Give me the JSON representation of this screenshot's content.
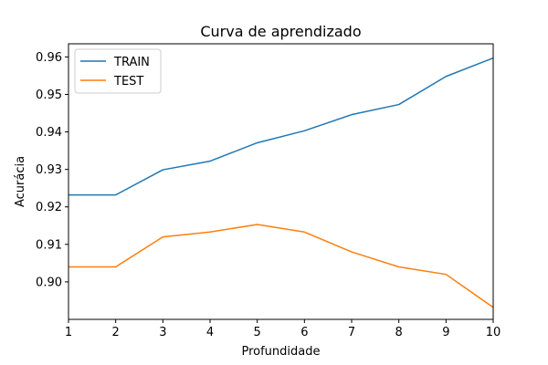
{
  "chart_data": {
    "type": "line",
    "title": "Curva de aprendizado",
    "xlabel": "Profundidade",
    "ylabel": "Acurácia",
    "x": [
      1,
      2,
      3,
      4,
      5,
      6,
      7,
      8,
      9,
      10
    ],
    "xticks": [
      "1",
      "2",
      "3",
      "4",
      "5",
      "6",
      "7",
      "8",
      "9",
      "10"
    ],
    "xlim": [
      1,
      10
    ],
    "ylim": [
      0.89,
      0.9635
    ],
    "yticks": [
      "0.90",
      "0.91",
      "0.92",
      "0.93",
      "0.94",
      "0.95",
      "0.96"
    ],
    "ytick_values": [
      0.9,
      0.91,
      0.92,
      0.93,
      0.94,
      0.95,
      0.96
    ],
    "grid": false,
    "legend_position": "upper-left",
    "series": [
      {
        "name": "TRAIN",
        "color": "#1f77b4",
        "values": [
          0.9232,
          0.9232,
          0.9299,
          0.9322,
          0.9371,
          0.9403,
          0.9446,
          0.9473,
          0.9548,
          0.9597
        ]
      },
      {
        "name": "TEST",
        "color": "#ff7f0e",
        "values": [
          0.904,
          0.904,
          0.912,
          0.9133,
          0.9153,
          0.9133,
          0.908,
          0.904,
          0.902,
          0.8932
        ]
      }
    ]
  }
}
